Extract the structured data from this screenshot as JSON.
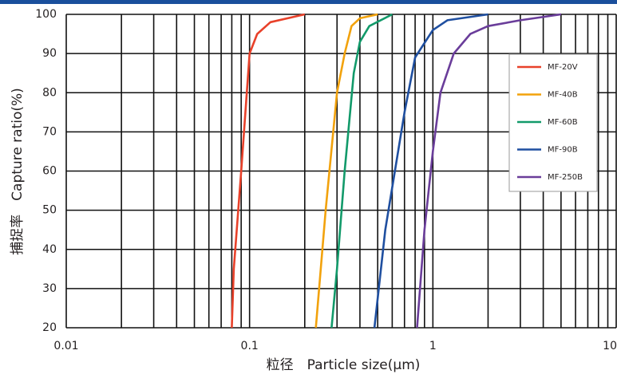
{
  "chart_data": {
    "type": "line",
    "x_label": "粒径　Particle size(μm)",
    "y_label": "捕捉率　Capture ratio(%)",
    "xscale": "log",
    "xlim": [
      0.01,
      10
    ],
    "xticks": [
      0.01,
      0.1,
      1,
      10
    ],
    "xminorticks": [
      0.02,
      0.03,
      0.04,
      0.05,
      0.06,
      0.07,
      0.08,
      0.09,
      0.2,
      0.3,
      0.4,
      0.5,
      0.6,
      0.7,
      0.8,
      0.9,
      2,
      3,
      4,
      5,
      6,
      7,
      8,
      9
    ],
    "ylim": [
      20,
      100
    ],
    "yticks": [
      20,
      30,
      40,
      50,
      60,
      70,
      80,
      90,
      100
    ],
    "grid": true,
    "legend": "upper right",
    "series": [
      {
        "name": "MF-20V",
        "color": "#e8412a",
        "x": [
          0.08,
          0.082,
          0.09,
          0.1,
          0.11,
          0.13,
          0.2
        ],
        "values": [
          20,
          35,
          60,
          90,
          95,
          98,
          100
        ]
      },
      {
        "name": "MF-40B",
        "color": "#f2a20c",
        "x": [
          0.23,
          0.26,
          0.3,
          0.33,
          0.36,
          0.4,
          0.5
        ],
        "values": [
          20,
          50,
          80,
          90,
          97,
          99,
          100
        ]
      },
      {
        "name": "MF-60B",
        "color": "#129a6a",
        "x": [
          0.28,
          0.3,
          0.33,
          0.37,
          0.4,
          0.45,
          0.6
        ],
        "values": [
          20,
          35,
          60,
          85,
          93,
          97,
          100
        ]
      },
      {
        "name": "MF-90B",
        "color": "#1f4fa0",
        "x": [
          0.48,
          0.55,
          0.7,
          0.8,
          1.0,
          1.2,
          2
        ],
        "values": [
          20,
          45,
          75,
          89,
          96,
          98.5,
          100
        ]
      },
      {
        "name": "MF-250B",
        "color": "#6a3d9a",
        "x": [
          0.82,
          0.9,
          1.0,
          1.1,
          1.3,
          1.6,
          2,
          3,
          5
        ],
        "values": [
          20,
          45,
          65,
          80,
          90,
          95,
          97,
          98.5,
          100
        ]
      }
    ]
  }
}
